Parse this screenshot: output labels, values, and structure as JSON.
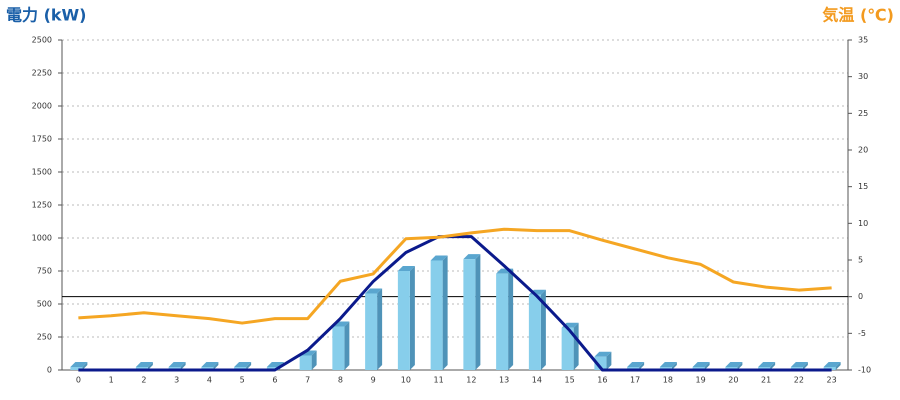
{
  "chart_data": {
    "type": "bar",
    "y_title": "電力 (kW)",
    "y_title_color": "#1a5fa8",
    "y2_title": "気温 (℃)",
    "y2_title_color": "#f39a1e",
    "categories": [
      "0",
      "1",
      "2",
      "3",
      "4",
      "5",
      "6",
      "7",
      "8",
      "9",
      "10",
      "11",
      "12",
      "13",
      "14",
      "15",
      "16",
      "17",
      "18",
      "19",
      "20",
      "21",
      "22",
      "23"
    ],
    "ylim": [
      0,
      2500
    ],
    "yticks": [
      0,
      250,
      500,
      750,
      1000,
      1250,
      1500,
      1750,
      2000,
      2250,
      2500
    ],
    "y2lim": [
      -10,
      35
    ],
    "y2ticks": [
      -10,
      -5,
      0,
      5,
      10,
      15,
      20,
      25,
      30,
      35
    ],
    "grid": true,
    "y2_reference": 0,
    "series": [
      {
        "type": "bar",
        "color": "#87ceeb",
        "values": [
          0,
          null,
          0,
          0,
          0,
          0,
          0,
          110,
          330,
          580,
          750,
          830,
          840,
          730,
          570,
          320,
          100,
          0,
          0,
          0,
          0,
          0,
          0,
          0
        ]
      },
      {
        "type": "line",
        "color": "#0b1a8c",
        "values": [
          0,
          0,
          0,
          0,
          0,
          0,
          0,
          150,
          390,
          670,
          890,
          1010,
          1010,
          790,
          560,
          300,
          0,
          0,
          0,
          0,
          0,
          0,
          0,
          0
        ]
      },
      {
        "type": "line",
        "axis": "y2",
        "color": "#f5a623",
        "values": [
          -2.9,
          -2.6,
          -2.2,
          -2.6,
          -3.0,
          -3.6,
          -3.0,
          -3.0,
          2.1,
          3.1,
          7.9,
          8.1,
          8.7,
          9.2,
          9.0,
          9.0,
          7.7,
          6.5,
          5.3,
          4.4,
          2.0,
          1.3,
          0.9,
          1.2
        ]
      }
    ]
  }
}
